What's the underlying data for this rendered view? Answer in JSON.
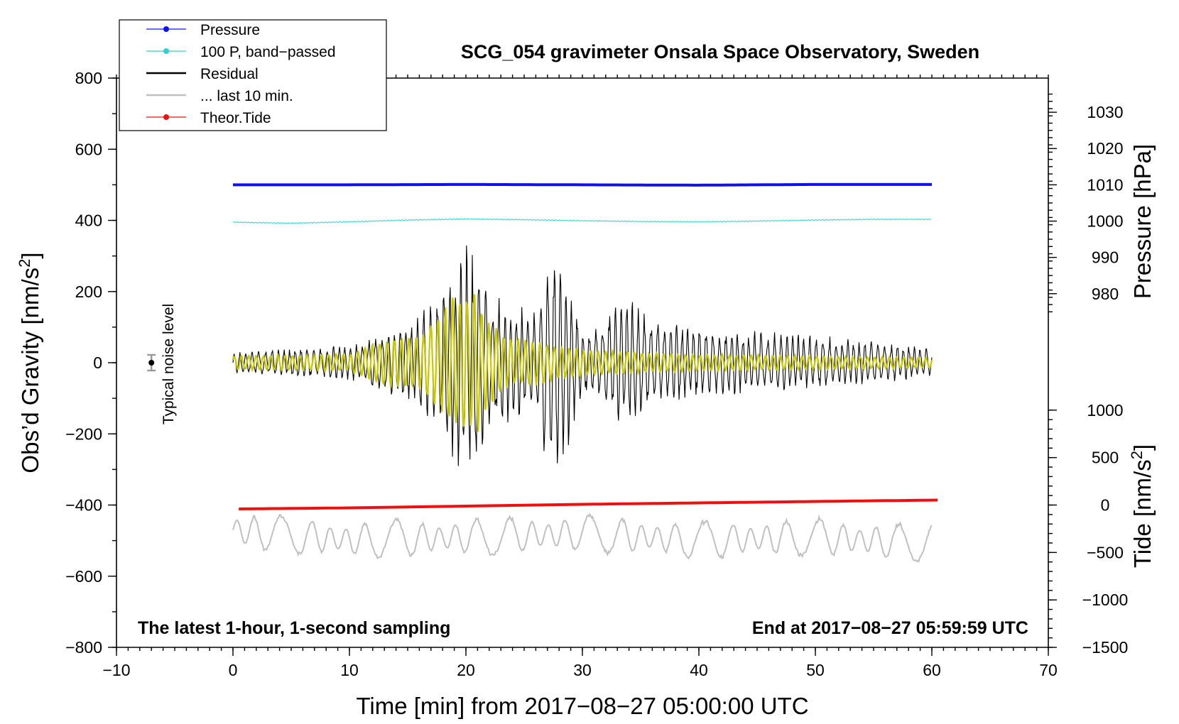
{
  "chart_data": {
    "type": "line",
    "title": "SCG_054 gravimeter Onsala Space Observatory, Sweden",
    "xlabel": "Time [min] from 2017−08−27 05:00:00 UTC",
    "ylabel": "Obs’d Gravity [nm/s",
    "ylabel_sup": "2",
    "ylabel_end": "]",
    "y2label": "Pressure [hPa]",
    "y3label": "Tide [nm/s",
    "y3label_sup": "2",
    "y3label_end": "]",
    "xlim": [
      -10,
      70
    ],
    "ylim": [
      -800,
      800
    ],
    "pressure_axis": {
      "ticks": [
        980,
        990,
        1000,
        1010,
        1020,
        1030
      ],
      "ref_value": 1010,
      "ref_gravity": 500,
      "gravity_per_hpa": 10.2
    },
    "tide_axis": {
      "ticks": [
        1000,
        500,
        0,
        -500,
        -1000,
        -1500
      ],
      "ref_value": 0,
      "ref_gravity": -400,
      "gravity_per_unit": 0.2667
    },
    "x_ticks": [
      "−10",
      "0",
      "10",
      "20",
      "30",
      "40",
      "50",
      "60",
      "70"
    ],
    "x_tick_values": [
      -10,
      0,
      10,
      20,
      30,
      40,
      50,
      60,
      70
    ],
    "y_ticks": [
      "800",
      "600",
      "400",
      "200",
      "0",
      "−200",
      "−400",
      "−600",
      "−800"
    ],
    "y_tick_values": [
      800,
      600,
      400,
      200,
      0,
      -200,
      -400,
      -600,
      -800
    ],
    "y2_tick_labels": [
      "980",
      "990",
      "1000",
      "1010",
      "1020",
      "1030"
    ],
    "y3_tick_labels": [
      "1000",
      "500",
      "0",
      "−500",
      "−1000",
      "−1500"
    ],
    "legend": [
      {
        "name": "Pressure",
        "color": "#1010ee",
        "marker": true
      },
      {
        "name": "100 P, band−passed",
        "color": "#30d0d0",
        "marker": true
      },
      {
        "name": "Residual",
        "color": "#000000",
        "marker": false
      },
      {
        "name": "... last 10 min.",
        "color": "#c0c0c0",
        "marker": false
      },
      {
        "name": "Theor.Tide",
        "color": "#ee1010",
        "marker": true
      }
    ],
    "series": [
      {
        "name": "Pressure",
        "axis": "gravity",
        "x": [
          0,
          10,
          20,
          30,
          40,
          50,
          60
        ],
        "values": [
          500,
          500,
          501,
          500,
          499,
          501,
          501
        ]
      },
      {
        "name": "100 P, band−passed",
        "axis": "gravity",
        "x": [
          0,
          5,
          10,
          15,
          20,
          25,
          30,
          35,
          40,
          45,
          50,
          55,
          60
        ],
        "values": [
          395,
          392,
          396,
          401,
          404,
          402,
          399,
          397,
          396,
          398,
          401,
          403,
          403
        ]
      },
      {
        "name": "Theor.Tide",
        "axis": "gravity",
        "x": [
          0.5,
          10,
          20,
          30,
          40,
          50,
          60.5
        ],
        "values": [
          -411,
          -408,
          -403,
          -398,
          -394,
          -390,
          -386
        ]
      },
      {
        "name": "Residual",
        "axis": "gravity",
        "x": [
          0,
          5,
          10,
          13,
          16,
          18,
          19,
          20,
          21,
          22,
          24,
          26,
          27,
          27.8,
          28.5,
          30,
          31,
          33,
          34,
          36,
          40,
          45,
          50,
          55,
          60
        ],
        "values": [
          30,
          40,
          50,
          90,
          130,
          230,
          280,
          340,
          320,
          200,
          170,
          140,
          320,
          330,
          300,
          90,
          100,
          170,
          200,
          130,
          100,
          90,
          80,
          60,
          40
        ]
      },
      {
        "name": "Residual (band−passed)",
        "axis": "gravity",
        "x": [
          0,
          10,
          13,
          16,
          18,
          19,
          20,
          21,
          22,
          24,
          27,
          28,
          30,
          32,
          35,
          40,
          50,
          60
        ],
        "values": [
          20,
          25,
          70,
          80,
          150,
          200,
          210,
          200,
          120,
          70,
          60,
          50,
          40,
          35,
          30,
          25,
          20,
          15
        ]
      },
      {
        "name": "... last 10 min.",
        "axis": "gravity",
        "x": [
          0,
          10,
          20,
          30,
          40,
          50,
          60
        ],
        "values": [
          -470,
          -500,
          -490,
          -480,
          -500,
          -490,
          -510
        ]
      }
    ]
  },
  "annotations": {
    "noise_label": "Typical noise level",
    "noise_point": {
      "x": -7,
      "y": 0,
      "err": 22
    },
    "bottom_left": "The latest 1-hour, 1-second sampling",
    "bottom_right": "End at 2017−08−27 05:59:59 UTC"
  },
  "colors": {
    "pressure": "#1010ee",
    "bandpassed_pressure": "#40d8d8",
    "residual": "#000000",
    "residual_filtered": "#c8c800",
    "last10": "#c0c0c0",
    "tide": "#ee1010"
  }
}
